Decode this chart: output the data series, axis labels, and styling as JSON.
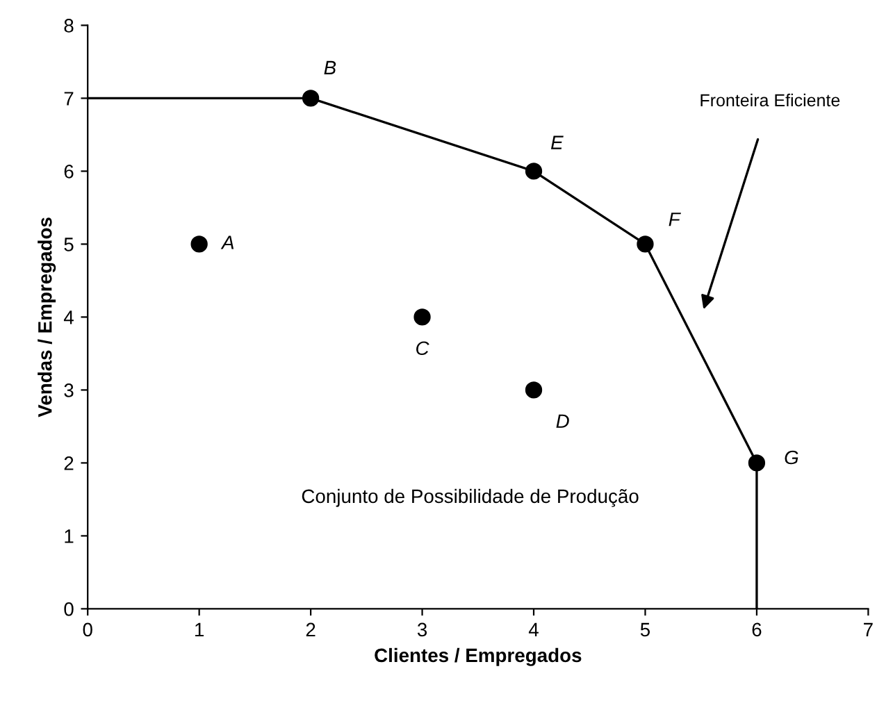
{
  "chart_data": {
    "type": "scatter",
    "xlabel": "Clientes / Empregados",
    "ylabel": "Vendas / Empregados",
    "series": [
      {
        "type": "line",
        "color": "#000000",
        "x": [
          0,
          2,
          4,
          5,
          6,
          6
        ],
        "values": [
          7,
          7,
          6,
          5,
          2,
          0
        ],
        "marker": "none"
      },
      {
        "color": "#000000",
        "x": [
          1,
          2,
          3,
          4,
          4,
          5,
          6
        ],
        "values": [
          5,
          7,
          4,
          3,
          6,
          5,
          2
        ],
        "marker": "circle"
      }
    ],
    "annotations": [
      {
        "text": "A",
        "x": 1,
        "y": 5
      },
      {
        "text": "B",
        "x": 2,
        "y": 7
      },
      {
        "text": "C",
        "x": 3,
        "y": 4
      },
      {
        "text": "D",
        "x": 4,
        "y": 3
      },
      {
        "text": "E",
        "x": 4,
        "y": 6
      },
      {
        "text": "F",
        "x": 5,
        "y": 5
      },
      {
        "text": "G",
        "x": 6,
        "y": 2
      },
      "Fronteira Eficiente",
      "Conjunto de Possibilidade de Produção"
    ],
    "xlim": [
      0,
      7
    ],
    "ylim": [
      0,
      8
    ],
    "xticks": [
      0,
      1,
      2,
      3,
      4,
      5,
      6,
      7
    ],
    "yticks": [
      0,
      1,
      2,
      3,
      4,
      5,
      6,
      7,
      8
    ],
    "grid": false,
    "legend": false
  }
}
